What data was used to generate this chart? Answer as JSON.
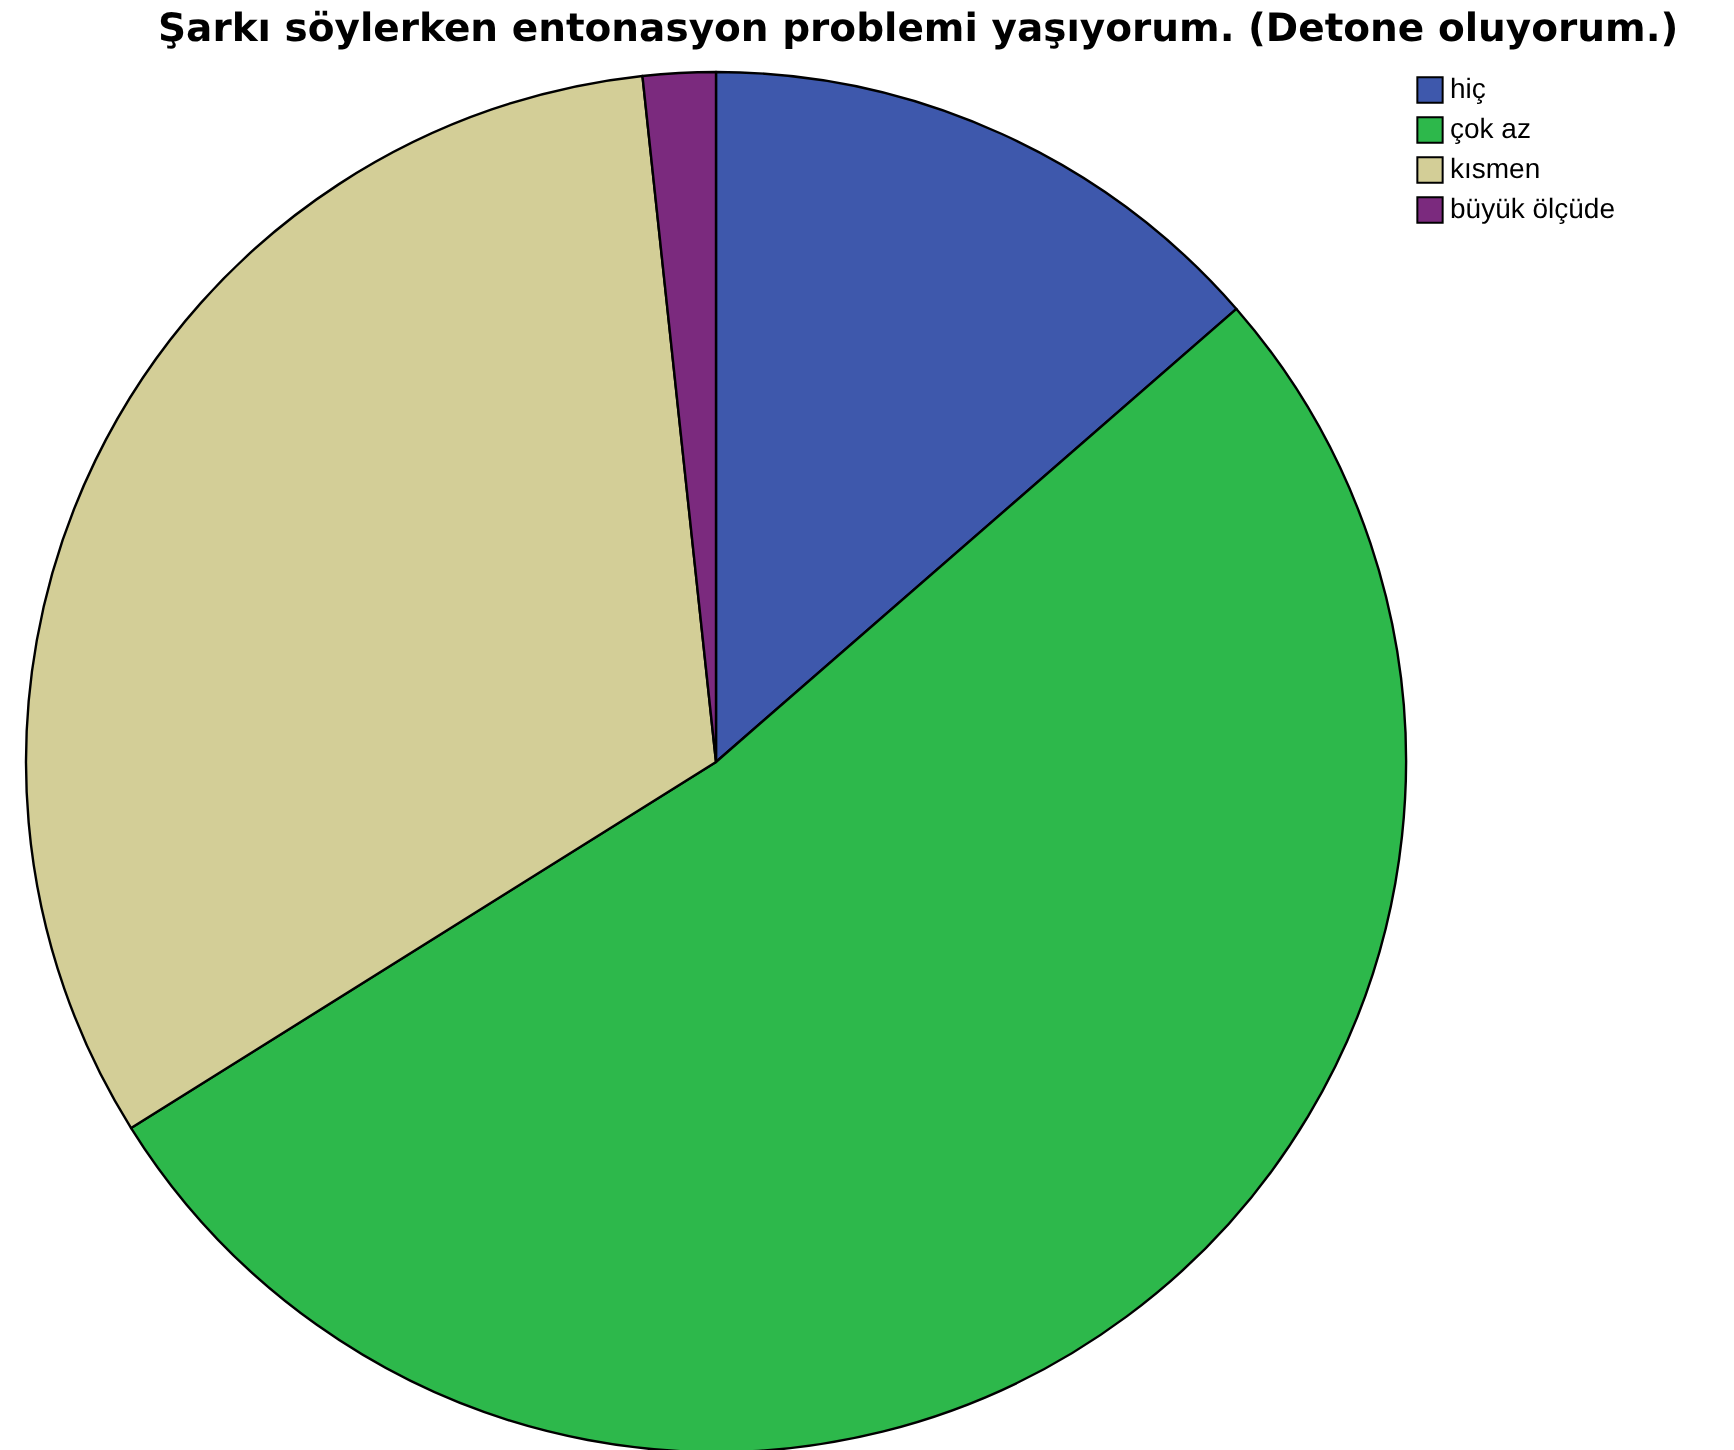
{
  "chart_data": {
    "type": "pie",
    "title": "Şarkı söylerken entonasyon problemi yaşıyorum. (Detone oluyorum.)",
    "categories": [
      "hiç",
      "çok az",
      "kısmen",
      "büyük ölçüde"
    ],
    "values": [
      13.6,
      52.5,
      32.2,
      1.7
    ],
    "colors": [
      "#3e58ac",
      "#2db84b",
      "#d3ce97",
      "#7b2a7e"
    ],
    "legend": "top right"
  }
}
